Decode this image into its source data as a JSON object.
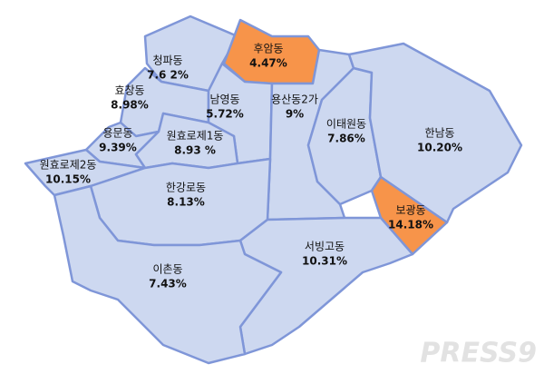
{
  "map": {
    "regions": [
      {
        "name": "청파동",
        "share": "7.6 2%",
        "highlight": false
      },
      {
        "name": "후암동",
        "share": "4.47%",
        "highlight": true
      },
      {
        "name": "효창동",
        "share": "8.98%",
        "highlight": false
      },
      {
        "name": "남영동",
        "share": "5.72%",
        "highlight": false
      },
      {
        "name": "용산동2가",
        "share": "9%",
        "highlight": false
      },
      {
        "name": "이태원동",
        "share": "7.86%",
        "highlight": false
      },
      {
        "name": "한남동",
        "share": "10.20%",
        "highlight": false
      },
      {
        "name": "용문동",
        "share": "9.39%",
        "highlight": false
      },
      {
        "name": "원효로제1동",
        "share": "8.93 %",
        "highlight": false
      },
      {
        "name": "원효로제2동",
        "share": "10.15%",
        "highlight": false
      },
      {
        "name": "한강로동",
        "share": "8.13%",
        "highlight": false
      },
      {
        "name": "보광동",
        "share": "14.18%",
        "highlight": true
      },
      {
        "name": "서빙고동",
        "share": "10.31%",
        "highlight": false
      },
      {
        "name": "이촌동",
        "share": "7.43%",
        "highlight": false
      }
    ],
    "fill": "#cdd8f0",
    "highlight_fill": "#f7944a",
    "stroke": "#7f96d8"
  },
  "watermark": "PRESS9"
}
